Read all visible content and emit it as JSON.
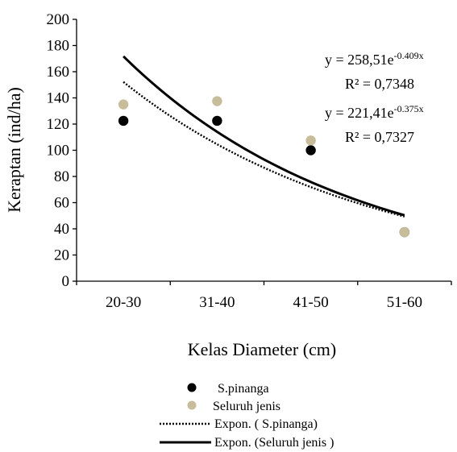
{
  "chart_data": {
    "type": "scatter",
    "categories": [
      "20-30",
      "31-40",
      "41-50",
      "51-60"
    ],
    "xlabel": "Kelas Diameter (cm)",
    "ylabel": "Keraptan (ind/ha)",
    "ylim": [
      0,
      200
    ],
    "yticks": [
      0,
      20,
      40,
      60,
      80,
      100,
      120,
      140,
      160,
      180,
      200
    ],
    "series": [
      {
        "name": "S.pinanga",
        "marker": "circle",
        "color": "#000000",
        "values": [
          122.5,
          122.5,
          100,
          37.5
        ]
      },
      {
        "name": "Seluruh jenis",
        "marker": "circle",
        "color": "#c8bd9a",
        "values": [
          135,
          137.5,
          107.5,
          37.5
        ]
      }
    ],
    "trendlines": [
      {
        "name": "Expon. ( S.pinanga)",
        "style": "dotted",
        "color": "#000000",
        "a": 221.41,
        "b": -0.375,
        "equation_base": "y = 221,41e",
        "equation_exp": "-0.375x",
        "r2": "R² = 0,7327"
      },
      {
        "name": "Expon. (Seluruh jenis )",
        "style": "solid",
        "color": "#000000",
        "a": 258.51,
        "b": -0.409,
        "equation_base": "y = 258,51e",
        "equation_exp": "-0.409x",
        "r2": "R² = 0,7348"
      }
    ],
    "legend": {
      "position": "bottom",
      "items": [
        "S.pinanga",
        "Seluruh jenis",
        "Expon. ( S.pinanga)",
        "Expon. (Seluruh jenis )"
      ]
    },
    "grid": false
  }
}
